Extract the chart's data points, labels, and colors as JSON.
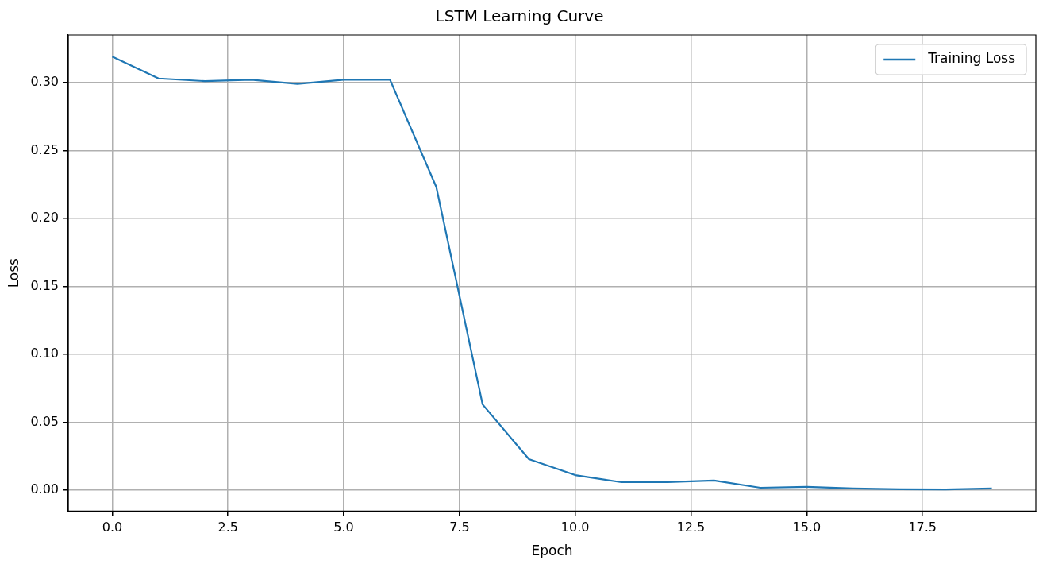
{
  "chart_data": {
    "type": "line",
    "title": "LSTM Learning Curve",
    "xlabel": "Epoch",
    "ylabel": "Loss",
    "x": [
      0,
      1,
      2,
      3,
      4,
      5,
      6,
      7,
      8,
      9,
      10,
      11,
      12,
      13,
      14,
      15,
      16,
      17,
      18,
      19
    ],
    "series": [
      {
        "name": "Training Loss",
        "color": "#1f77b4",
        "values": [
          0.319,
          0.303,
          0.301,
          0.302,
          0.299,
          0.302,
          0.302,
          0.223,
          0.063,
          0.0227,
          0.011,
          0.0058,
          0.0058,
          0.007,
          0.0017,
          0.0023,
          0.0012,
          0.0006,
          0.0005,
          0.0012
        ]
      }
    ],
    "xlim": [
      -0.95,
      19.95
    ],
    "xticks": [
      {
        "value": 0,
        "label": "0.0"
      },
      {
        "value": 2.5,
        "label": "2.5"
      },
      {
        "value": 5,
        "label": "5.0"
      },
      {
        "value": 7.5,
        "label": "7.5"
      },
      {
        "value": 10,
        "label": "10.0"
      },
      {
        "value": 12.5,
        "label": "12.5"
      },
      {
        "value": 15,
        "label": "15.0"
      },
      {
        "value": 17.5,
        "label": "17.5"
      }
    ],
    "ylim": [
      -0.0155,
      0.335
    ],
    "yticks": [
      {
        "value": 0,
        "label": "0.00"
      },
      {
        "value": 0.05,
        "label": "0.05"
      },
      {
        "value": 0.1,
        "label": "0.10"
      },
      {
        "value": 0.15,
        "label": "0.15"
      },
      {
        "value": 0.2,
        "label": "0.20"
      },
      {
        "value": 0.25,
        "label": "0.25"
      },
      {
        "value": 0.3,
        "label": "0.30"
      }
    ],
    "grid": true,
    "legend": "top right",
    "marker": "none",
    "line_style": "solid"
  }
}
